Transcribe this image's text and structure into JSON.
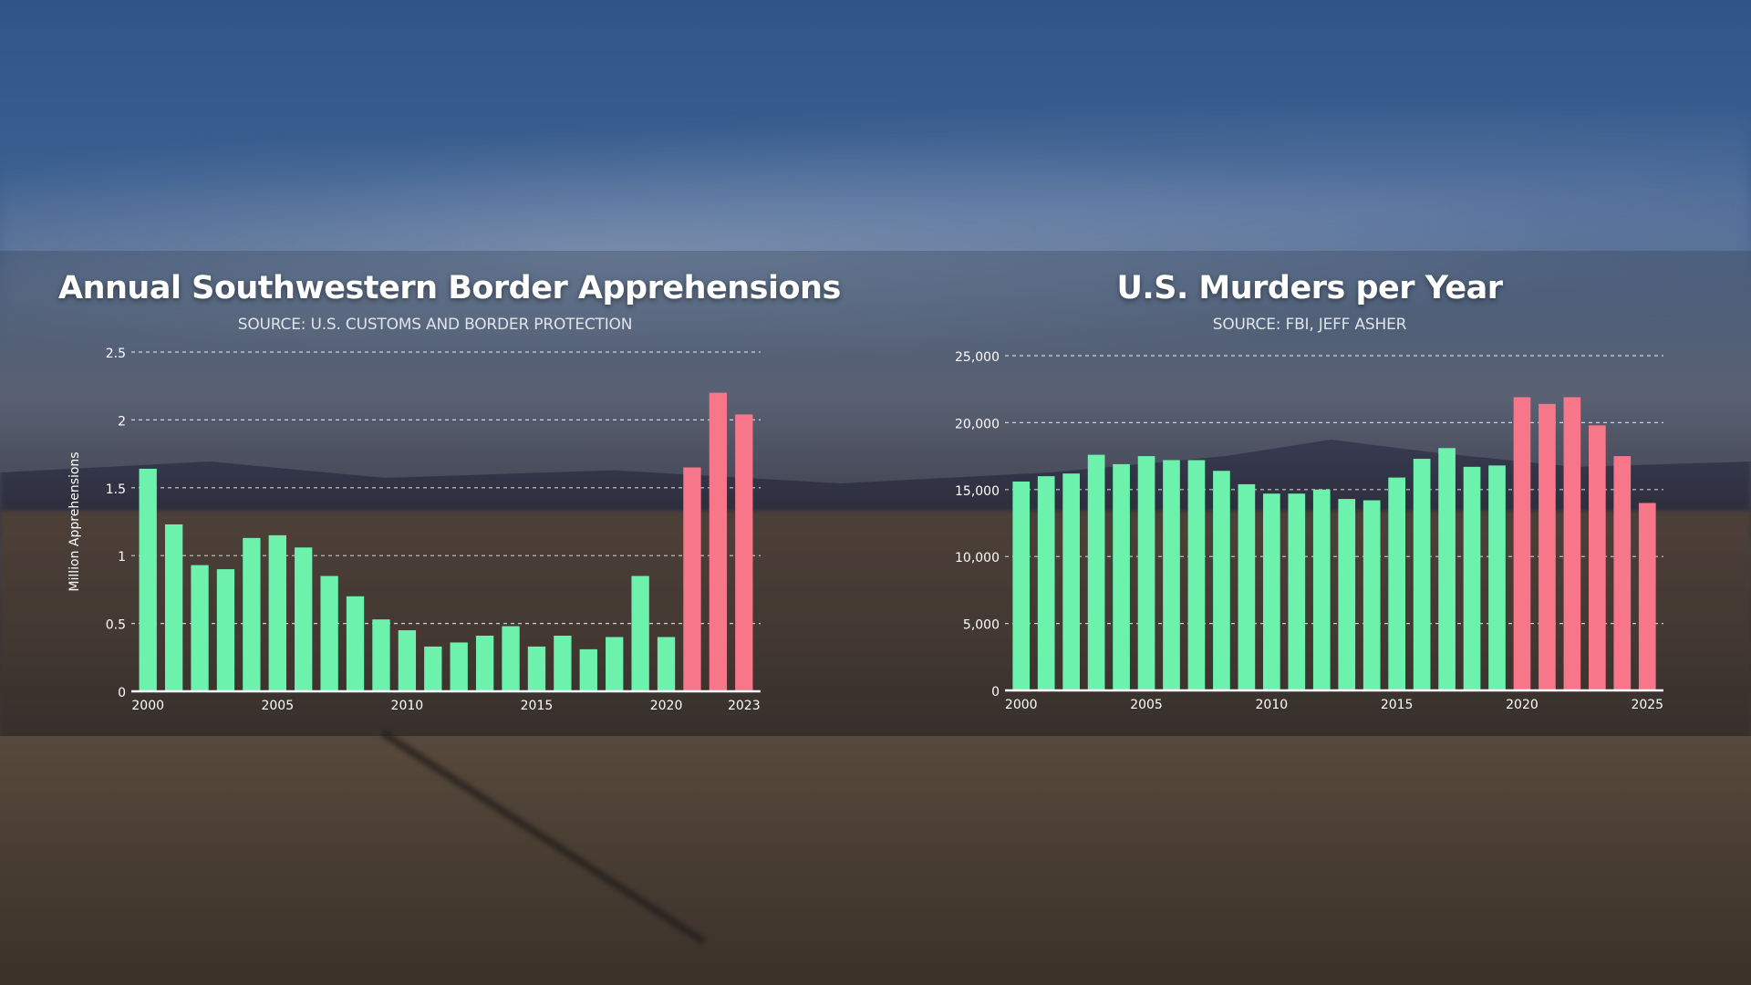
{
  "colors": {
    "normal_bar": "#6cf2ad",
    "highlight_bar": "#f7768a",
    "gridline": "#e6e6e6",
    "text": "#ffffff"
  },
  "chart_data": [
    {
      "type": "bar",
      "title": "Annual Southwestern Border Apprehensions",
      "subtitle": "SOURCE: U.S. CUSTOMS AND BORDER PROTECTION",
      "ylabel": "Million Apprehensions",
      "xlabel": "",
      "ylim": [
        0,
        2.5
      ],
      "y_ticks": [
        "0",
        "0.5",
        "1",
        "1.5",
        "2",
        "2.5"
      ],
      "x_tick_labels": [
        "2000",
        "2005",
        "2010",
        "2015",
        "2020",
        "2023"
      ],
      "grid": true,
      "categories": [
        2000,
        2001,
        2002,
        2003,
        2004,
        2005,
        2006,
        2007,
        2008,
        2009,
        2010,
        2011,
        2012,
        2013,
        2014,
        2015,
        2016,
        2017,
        2018,
        2019,
        2020,
        2021,
        2022,
        2023
      ],
      "values": [
        1.64,
        1.23,
        0.93,
        0.9,
        1.13,
        1.15,
        1.06,
        0.85,
        0.7,
        0.53,
        0.45,
        0.33,
        0.36,
        0.41,
        0.48,
        0.33,
        0.41,
        0.31,
        0.4,
        0.85,
        0.4,
        1.65,
        2.2,
        2.04
      ],
      "highlight_from": 2021
    },
    {
      "type": "bar",
      "title": "U.S. Murders per Year",
      "subtitle": "SOURCE: FBI, JEFF ASHER",
      "ylabel": "",
      "xlabel": "",
      "ylim": [
        0,
        25000
      ],
      "y_ticks": [
        "0",
        "5,000",
        "10,000",
        "15,000",
        "20,000",
        "25,000"
      ],
      "x_tick_labels": [
        "2000",
        "2005",
        "2010",
        "2015",
        "2020",
        "2025"
      ],
      "grid": true,
      "categories": [
        2000,
        2001,
        2002,
        2003,
        2004,
        2005,
        2006,
        2007,
        2008,
        2009,
        2010,
        2011,
        2012,
        2013,
        2014,
        2015,
        2016,
        2017,
        2018,
        2019,
        2020,
        2021,
        2022,
        2023,
        2024,
        2025
      ],
      "values": [
        15600,
        16000,
        16200,
        17600,
        16900,
        17500,
        17200,
        17200,
        16400,
        15400,
        14700,
        14700,
        15000,
        14300,
        14200,
        15900,
        17300,
        18100,
        16700,
        16800,
        21900,
        21400,
        21900,
        19800,
        17500,
        14000
      ],
      "highlight_from": 2020
    }
  ]
}
